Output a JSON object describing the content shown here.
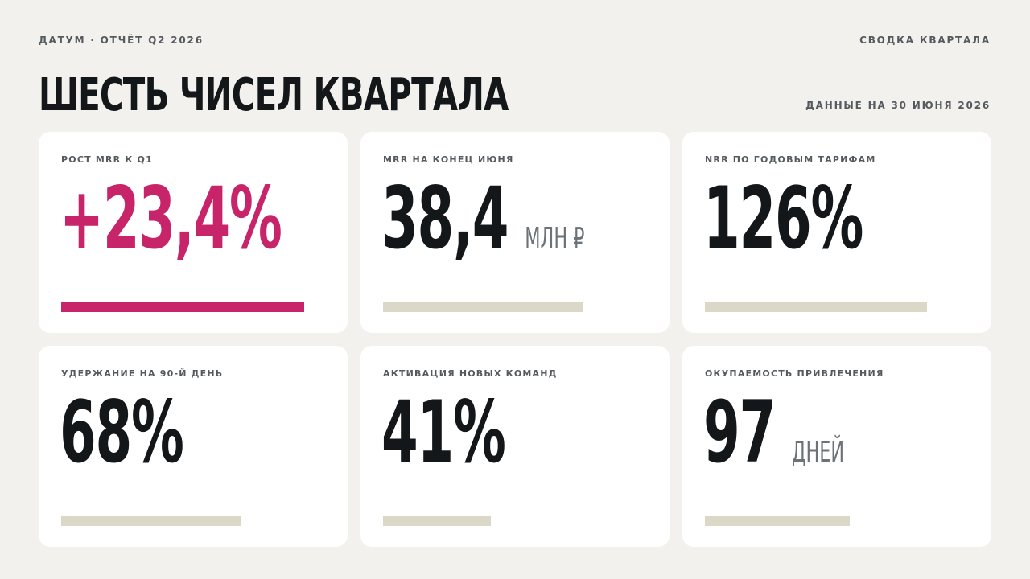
{
  "header": {
    "kicker": "ДАТУМ · ОТЧЁТ Q2 2026",
    "section": "СВОДКА КВАРТАЛА",
    "title": "ШЕСТЬ ЧИСЕЛ КВАРТАЛА",
    "date_note": "ДАННЫЕ НА 30 ИЮНЯ 2026"
  },
  "cards": [
    {
      "label": "РОСТ MRR К Q1",
      "value": "+23,4%"
    },
    {
      "label": "MRR НА КОНЕЦ ИЮНЯ",
      "value": "38,4",
      "unit": "МЛН ₽"
    },
    {
      "label": "NRR ПО ГОДОВЫМ ТАРИФАМ",
      "value": "126%"
    },
    {
      "label": "УДЕРЖАНИЕ НА 90-Й ДЕНЬ",
      "value": "68%"
    },
    {
      "label": "АКТИВАЦИЯ НОВЫХ КОМАНД",
      "value": "41%"
    },
    {
      "label": "ОКУПАЕМОСТЬ ПРИВЛЕЧЕНИЯ",
      "value": "97",
      "unit": "ДНЕЙ"
    }
  ]
}
